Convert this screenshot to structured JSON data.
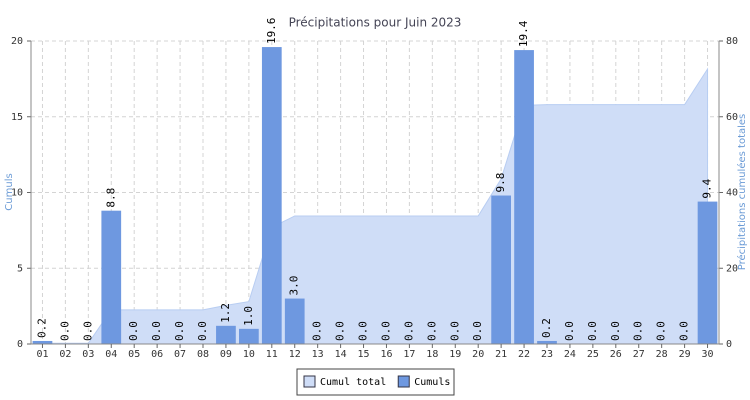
{
  "chart_data": {
    "type": "bar",
    "title": "Précipitations pour Juin 2023",
    "y_label": "Cumuls",
    "y2_label": "Précipitations cumulées totales",
    "categories": [
      "01",
      "02",
      "03",
      "04",
      "05",
      "06",
      "07",
      "08",
      "09",
      "10",
      "11",
      "12",
      "13",
      "14",
      "15",
      "16",
      "17",
      "18",
      "19",
      "20",
      "21",
      "22",
      "23",
      "24",
      "25",
      "26",
      "27",
      "28",
      "29",
      "30"
    ],
    "series": [
      {
        "name": "Cumul total",
        "color": "#cfddf7",
        "axis": "y2",
        "values": [
          0.2,
          0.2,
          0.2,
          9.0,
          9.0,
          9.0,
          9.0,
          9.0,
          10.2,
          11.2,
          30.8,
          33.8,
          33.8,
          33.8,
          33.8,
          33.8,
          33.8,
          33.8,
          33.8,
          33.8,
          43.6,
          63.0,
          63.2,
          63.2,
          63.2,
          63.2,
          63.2,
          63.2,
          63.2,
          72.6
        ]
      },
      {
        "name": "Cumuls",
        "color": "#6e98e0",
        "values": [
          0.2,
          0,
          0,
          8.8,
          0,
          0,
          0,
          0,
          1.2,
          1.0,
          19.6,
          3.0,
          0,
          0,
          0,
          0,
          0,
          0,
          0,
          0,
          9.8,
          19.4,
          0.2,
          0,
          0,
          0,
          0,
          0,
          0,
          9.4
        ],
        "value_labels": [
          "0.2",
          "0.0",
          "0.0",
          "8.8",
          "0.0",
          "0.0",
          "0.0",
          "0.0",
          "1.2",
          "1.0",
          "19.6",
          "3.0",
          "0.0",
          "0.0",
          "0.0",
          "0.0",
          "0.0",
          "0.0",
          "0.0",
          "0.0",
          "9.8",
          "19.4",
          "0.2",
          "0.0",
          "0.0",
          "0.0",
          "0.0",
          "0.0",
          "0.0",
          "9.4"
        ]
      }
    ],
    "ylim": [
      0,
      20
    ],
    "yticks": [
      0,
      5,
      10,
      15,
      20
    ],
    "y2lim": [
      0,
      80
    ],
    "y2ticks": [
      0,
      20,
      40,
      60,
      80
    ],
    "grid": true,
    "legend": "bottom"
  }
}
